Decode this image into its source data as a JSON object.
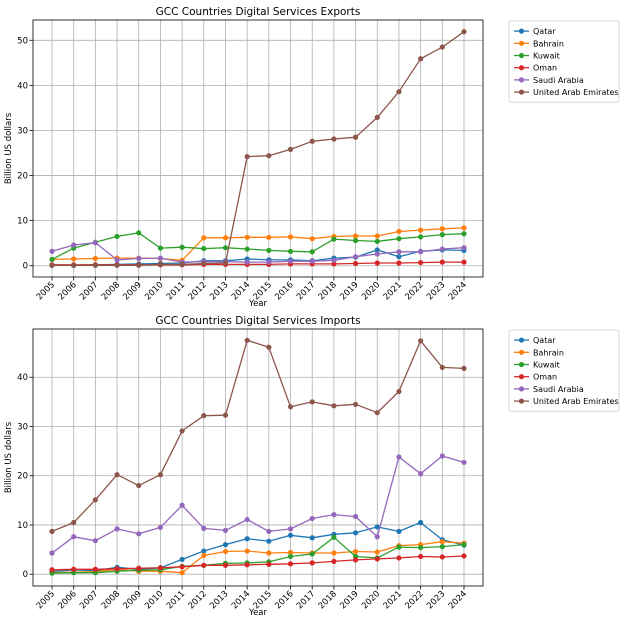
{
  "colors": {
    "Qatar": "#1f77b4",
    "Bahrain": "#ff7f0e",
    "Kuwait": "#2ca02c",
    "Oman": "#d62728",
    "Saudi Arabia": "#9467bd",
    "United Arab Emirates": "#8c564b"
  },
  "chart_data": [
    {
      "type": "line",
      "title": "GCC Countries Digital Services Exports",
      "xlabel": "Year",
      "ylabel": "Billion US dollars",
      "ylim": [
        -2.5,
        54.5
      ],
      "yticks": [
        0,
        10,
        20,
        30,
        40,
        50
      ],
      "grid": true,
      "legend_position": "outside-top-right",
      "x": [
        "2005",
        "2006",
        "2007",
        "2008",
        "2009",
        "2010",
        "2011",
        "2012",
        "2013",
        "2014",
        "2015",
        "2016",
        "2017",
        "2018",
        "2019",
        "2020",
        "2021",
        "2022",
        "2023",
        "2024"
      ],
      "series": [
        {
          "name": "Qatar",
          "values": [
            0.1,
            0.1,
            0.2,
            0.3,
            0.4,
            0.5,
            0.6,
            1.1,
            1.1,
            1.5,
            1.3,
            1.3,
            1.1,
            1.7,
            1.9,
            3.5,
            2.0,
            3.2,
            3.5,
            3.4
          ]
        },
        {
          "name": "Bahrain",
          "values": [
            1.4,
            1.5,
            1.6,
            1.7,
            1.7,
            1.6,
            1.2,
            6.2,
            6.2,
            6.3,
            6.3,
            6.4,
            6.0,
            6.5,
            6.6,
            6.6,
            7.6,
            7.9,
            8.2,
            8.4
          ]
        },
        {
          "name": "Kuwait",
          "values": [
            1.4,
            3.9,
            5.2,
            6.5,
            7.3,
            3.9,
            4.1,
            3.8,
            4.0,
            3.7,
            3.4,
            3.2,
            3.1,
            5.9,
            5.6,
            5.4,
            6.0,
            6.4,
            6.9,
            7.1
          ]
        },
        {
          "name": "Oman",
          "values": [
            0.2,
            0.2,
            0.2,
            0.2,
            0.2,
            0.2,
            0.2,
            0.3,
            0.3,
            0.3,
            0.3,
            0.4,
            0.4,
            0.4,
            0.5,
            0.6,
            0.6,
            0.7,
            0.8,
            0.8
          ]
        },
        {
          "name": "Saudi Arabia",
          "values": [
            3.2,
            4.6,
            5.1,
            1.3,
            1.6,
            1.7,
            0.8,
            0.9,
            0.9,
            0.8,
            0.8,
            1.0,
            1.0,
            1.2,
            2.0,
            2.6,
            3.1,
            3.1,
            3.7,
            4.0
          ]
        },
        {
          "name": "United Arab Emirates",
          "values": [
            0.1,
            0.1,
            0.1,
            0.1,
            0.1,
            0.3,
            0.3,
            0.5,
            0.6,
            24.2,
            24.4,
            25.8,
            27.6,
            28.1,
            28.5,
            32.9,
            38.6,
            45.9,
            48.5,
            51.9
          ]
        }
      ]
    },
    {
      "type": "line",
      "title": "GCC Countries Digital Services Imports",
      "xlabel": "Year",
      "ylabel": "Billion US dollars",
      "ylim": [
        -2.4,
        49.8
      ],
      "yticks": [
        0,
        10,
        20,
        30,
        40
      ],
      "grid": true,
      "legend_position": "outside-top-right",
      "x": [
        "2005",
        "2006",
        "2007",
        "2008",
        "2009",
        "2010",
        "2011",
        "2012",
        "2013",
        "2014",
        "2015",
        "2016",
        "2017",
        "2018",
        "2019",
        "2020",
        "2021",
        "2022",
        "2023",
        "2024"
      ],
      "series": [
        {
          "name": "Qatar",
          "values": [
            0.5,
            0.9,
            0.7,
            1.4,
            1.0,
            1.3,
            3.0,
            4.7,
            6.0,
            7.2,
            6.7,
            7.9,
            7.4,
            8.1,
            8.4,
            9.6,
            8.7,
            10.5,
            7.0,
            5.9
          ]
        },
        {
          "name": "Bahrain",
          "values": [
            0.3,
            0.4,
            0.5,
            1.0,
            0.6,
            0.6,
            0.3,
            3.8,
            4.6,
            4.7,
            4.3,
            4.4,
            4.3,
            4.3,
            4.6,
            4.5,
            5.8,
            6.0,
            6.6,
            6.3
          ]
        },
        {
          "name": "Kuwait",
          "values": [
            0.2,
            0.3,
            0.3,
            0.6,
            0.8,
            0.9,
            1.6,
            1.8,
            2.2,
            2.3,
            2.5,
            3.6,
            4.1,
            7.5,
            3.6,
            3.3,
            5.5,
            5.4,
            5.6,
            6.0
          ]
        },
        {
          "name": "Oman",
          "values": [
            0.9,
            1.0,
            1.0,
            1.1,
            1.2,
            1.3,
            1.5,
            1.8,
            1.8,
            1.9,
            2.0,
            2.1,
            2.3,
            2.6,
            2.9,
            3.1,
            3.3,
            3.6,
            3.5,
            3.7
          ]
        },
        {
          "name": "Saudi Arabia",
          "values": [
            4.3,
            7.6,
            6.8,
            9.2,
            8.2,
            9.5,
            14.0,
            9.3,
            8.9,
            11.1,
            8.7,
            9.2,
            11.3,
            12.1,
            11.7,
            7.6,
            23.8,
            20.4,
            24.0,
            22.7
          ]
        },
        {
          "name": "United Arab Emirates",
          "values": [
            8.7,
            10.5,
            15.1,
            20.2,
            18.0,
            20.2,
            29.1,
            32.2,
            32.3,
            47.5,
            46.1,
            34.0,
            35.0,
            34.2,
            34.5,
            32.8,
            37.1,
            47.4,
            42.0,
            41.8
          ]
        }
      ]
    }
  ]
}
